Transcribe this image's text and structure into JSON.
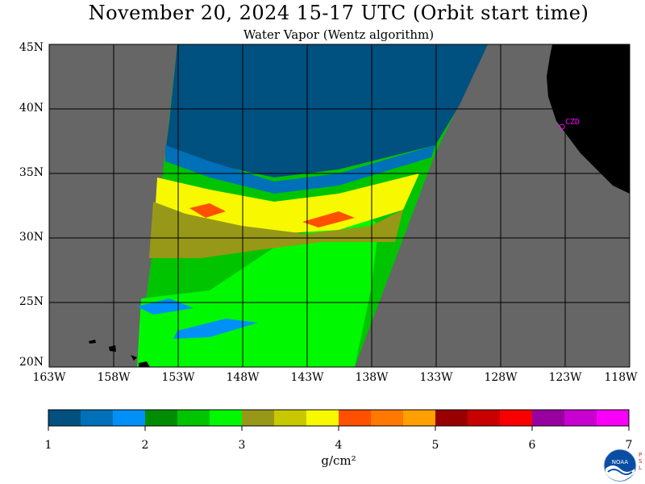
{
  "title": "November 20, 2024  15-17 UTC  (Orbit start time)",
  "subtitle": "Water Vapor (Wentz algorithm)",
  "map": {
    "lat_labels": [
      "45N",
      "40N",
      "35N",
      "30N",
      "25N",
      "20N"
    ],
    "lon_labels": [
      "163W",
      "158W",
      "153W",
      "148W",
      "143W",
      "138W",
      "133W",
      "128W",
      "123W",
      "118W"
    ],
    "lat_range": [
      20,
      45
    ],
    "lon_range": [
      -163,
      -118
    ],
    "grid": true,
    "station_label": "CZD",
    "colors": {
      "no_data": "#666666",
      "land": "#000000",
      "station": "#ff00ff"
    }
  },
  "colorbar": {
    "colors": [
      "#005080",
      "#0070b8",
      "#0090f8",
      "#008c00",
      "#00c400",
      "#00f800",
      "#989818",
      "#c8c800",
      "#f8f800",
      "#ff5000",
      "#ff7800",
      "#ffa000",
      "#980000",
      "#c80000",
      "#f80000",
      "#9800a0",
      "#c800d0",
      "#f800f8"
    ],
    "tick_labels": [
      "1",
      "2",
      "3",
      "4",
      "5",
      "6",
      "7"
    ],
    "units": "g/cm²",
    "range": [
      1,
      7
    ]
  },
  "logo": {
    "name": "NOAA",
    "side_text": [
      "P",
      "S",
      "L"
    ]
  }
}
